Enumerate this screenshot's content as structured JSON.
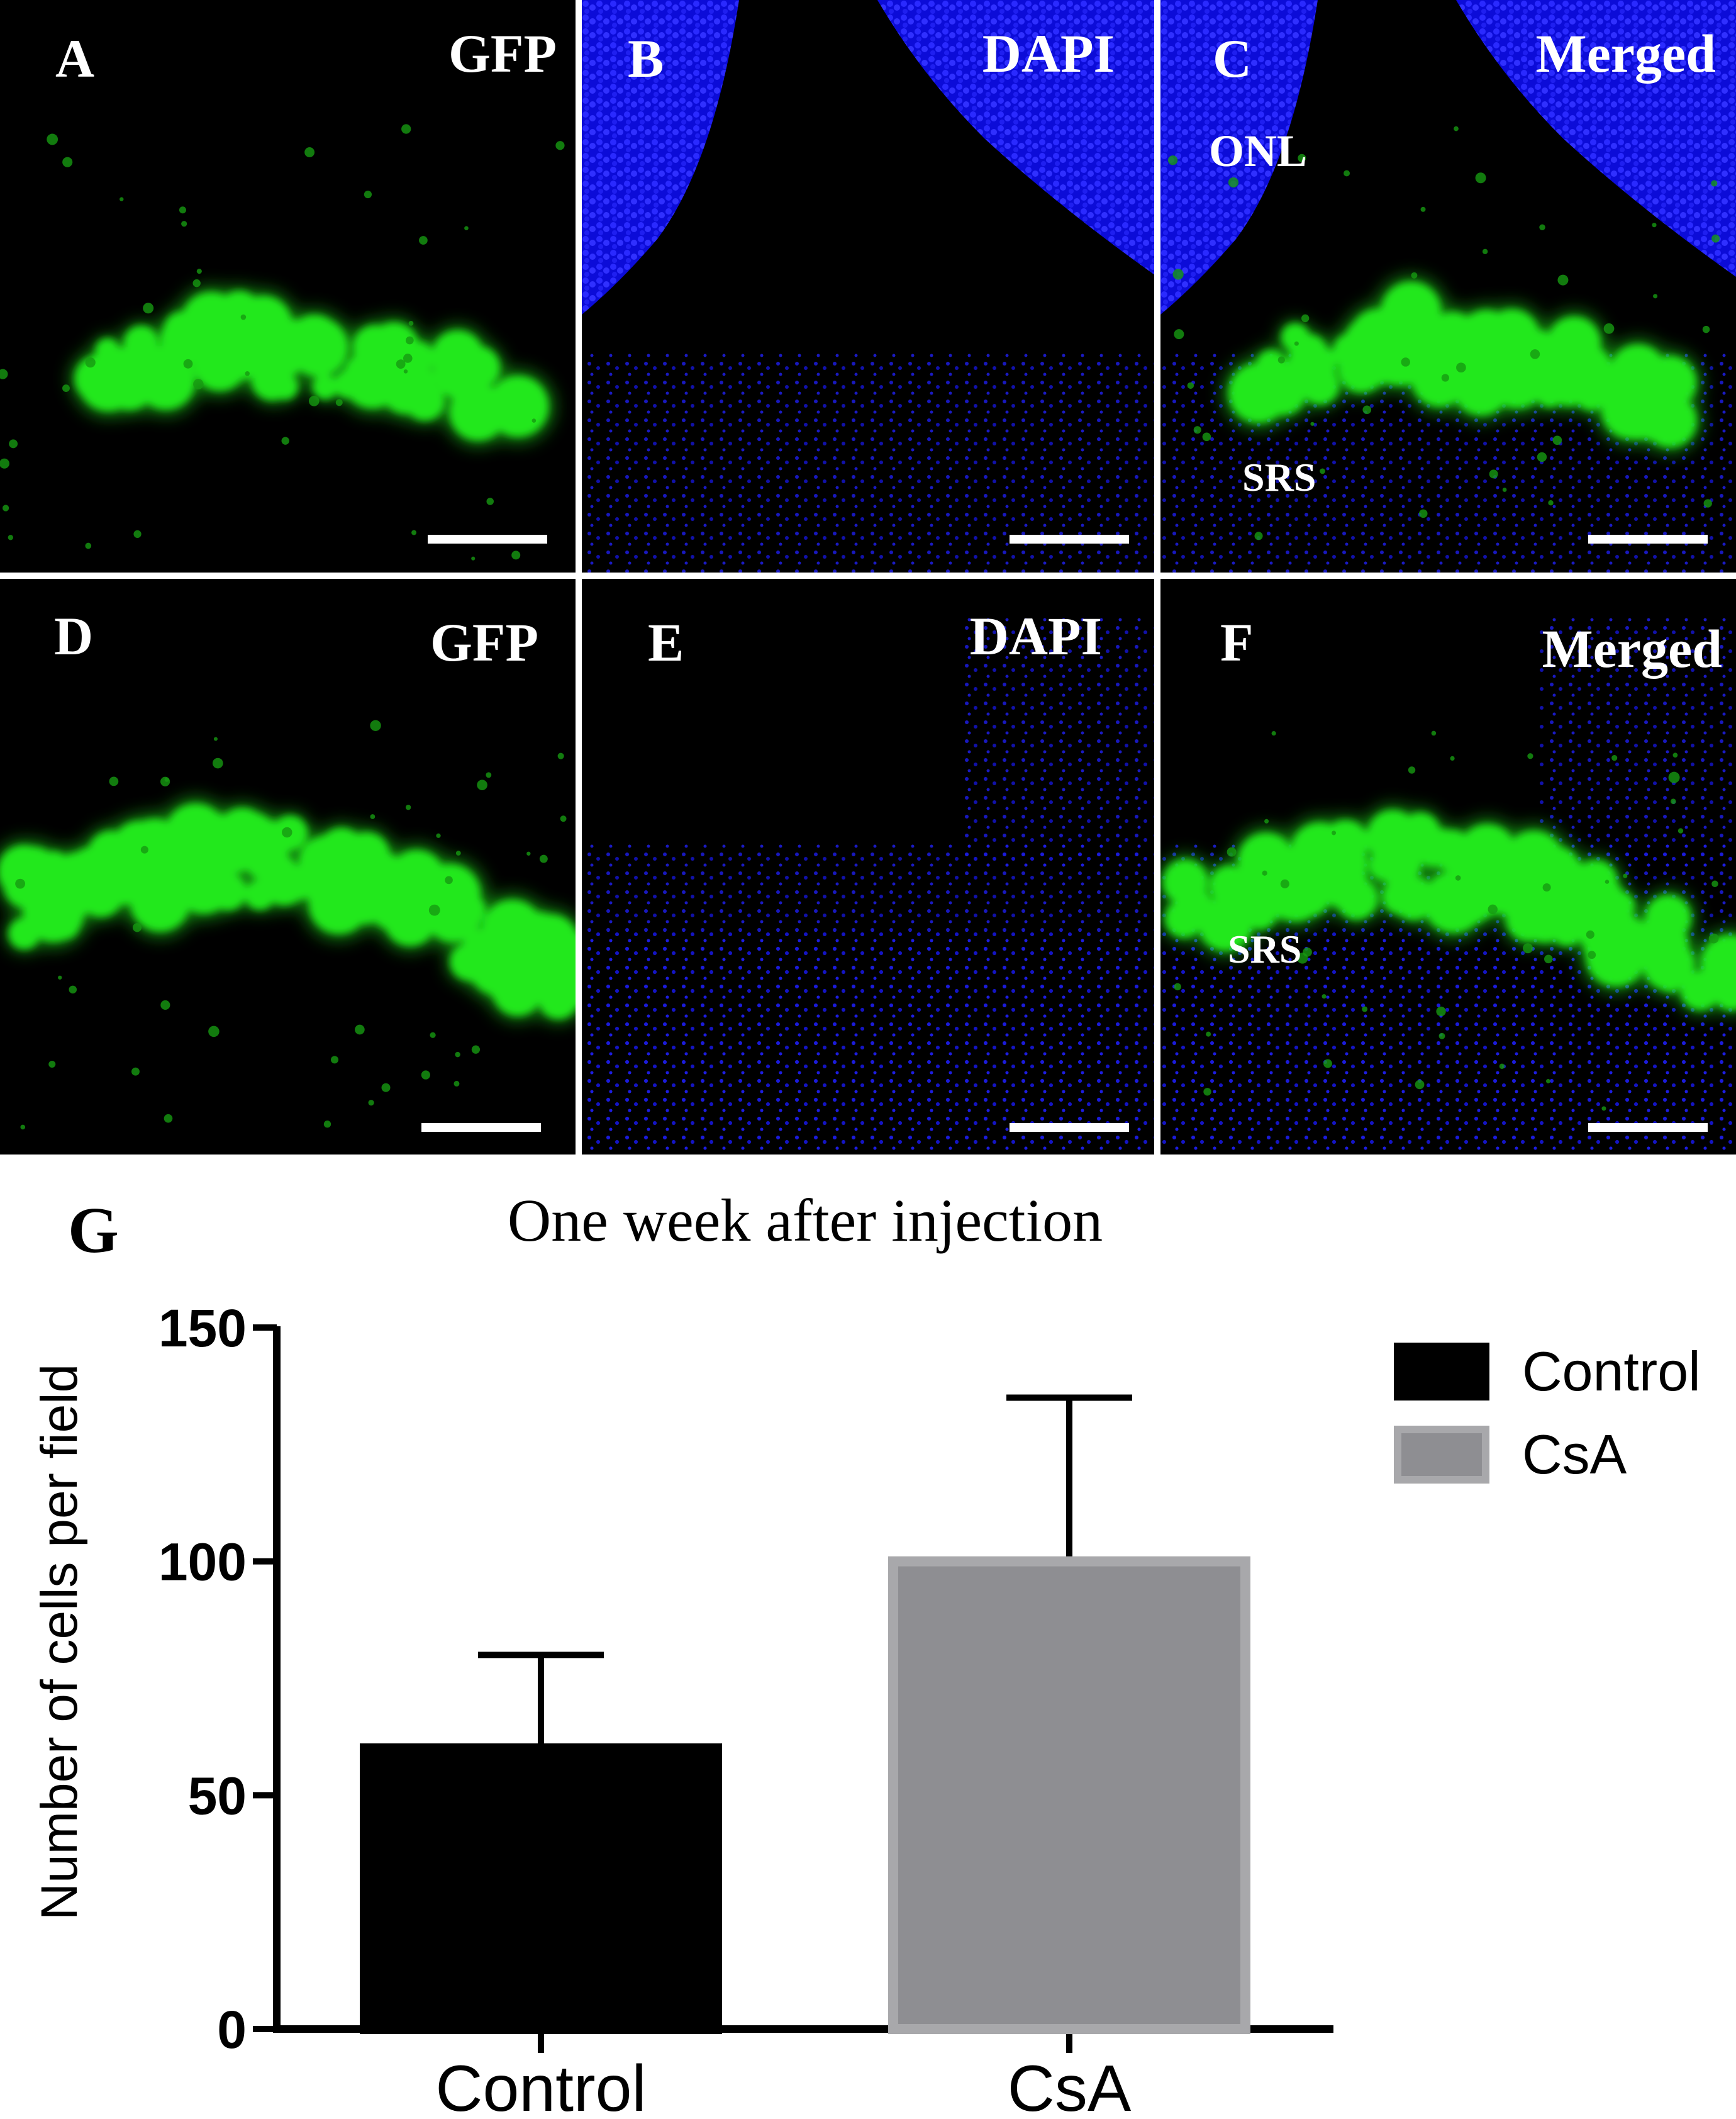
{
  "panels": [
    {
      "letter": "A",
      "channel": "GFP",
      "type": "gfp",
      "variant": 1
    },
    {
      "letter": "B",
      "channel": "DAPI",
      "type": "dapi",
      "variant": 1
    },
    {
      "letter": "C",
      "channel": "Merged",
      "type": "merged",
      "variant": 1
    },
    {
      "letter": "D",
      "channel": "GFP",
      "type": "gfp",
      "variant": 2
    },
    {
      "letter": "E",
      "channel": "DAPI",
      "type": "dapi",
      "variant": 2
    },
    {
      "letter": "F",
      "channel": "Merged",
      "type": "merged",
      "variant": 2
    }
  ],
  "annotations": {
    "c_onl": "ONL",
    "c_srs": "SRS",
    "f_srs": "SRS"
  },
  "colors": {
    "gfp": "#22e81c",
    "dapi": "#1a1aff",
    "control_bar": "#000000",
    "csa_bar": "#8e8e92",
    "csa_edge": "#a8a8ab"
  },
  "chart_data": {
    "panel_letter": "G",
    "type": "bar",
    "title": "One week after injection",
    "ylabel": "Number of cells per field",
    "xlabel": "",
    "categories": [
      "Control",
      "CsA"
    ],
    "values": [
      60,
      100
    ],
    "errors": [
      20,
      35
    ],
    "ylim": [
      0,
      150
    ],
    "yticks": [
      0,
      50,
      100,
      150
    ],
    "legend": {
      "position": "top-right",
      "entries": [
        "Control",
        "CsA"
      ]
    },
    "grid": false
  }
}
